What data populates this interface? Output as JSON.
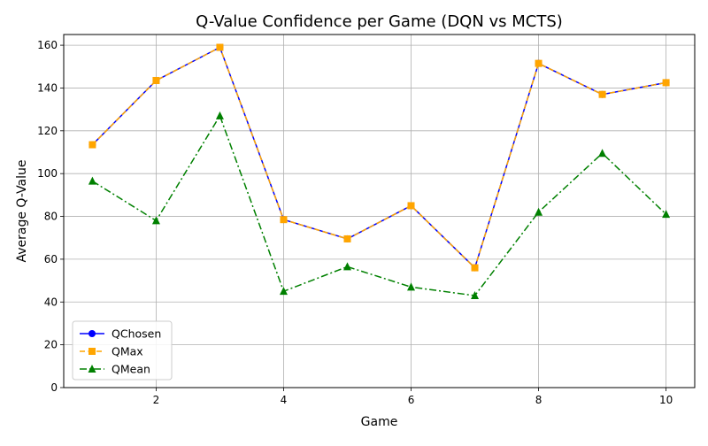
{
  "chart_data": {
    "type": "line",
    "title": "Q-Value Confidence per Game (DQN vs MCTS)",
    "xlabel": "Game",
    "ylabel": "Average Q-Value",
    "x": [
      1,
      2,
      3,
      4,
      5,
      6,
      7,
      8,
      9,
      10
    ],
    "xlim": [
      0.55,
      10.45
    ],
    "ylim": [
      0,
      165
    ],
    "xticks": [
      2,
      4,
      6,
      8,
      10
    ],
    "yticks": [
      0,
      20,
      40,
      60,
      80,
      100,
      120,
      140,
      160
    ],
    "grid": true,
    "legend_position": "lower-left",
    "series": [
      {
        "name": "QChosen",
        "values": [
          113.5,
          143.5,
          159,
          78.5,
          69.5,
          85,
          56,
          151.5,
          137,
          142.5
        ],
        "color": "#0000ff",
        "marker": "circle",
        "linestyle": "solid"
      },
      {
        "name": "QMax",
        "values": [
          113.5,
          143.5,
          159,
          78.5,
          69.5,
          85,
          56,
          151.5,
          137,
          142.5
        ],
        "color": "#ffa500",
        "marker": "square",
        "linestyle": "dashed"
      },
      {
        "name": "QMean",
        "values": [
          96.5,
          78,
          127,
          45,
          56.5,
          47,
          43,
          82,
          109.5,
          81
        ],
        "color": "#008000",
        "marker": "triangle",
        "linestyle": "dashdot"
      }
    ]
  }
}
